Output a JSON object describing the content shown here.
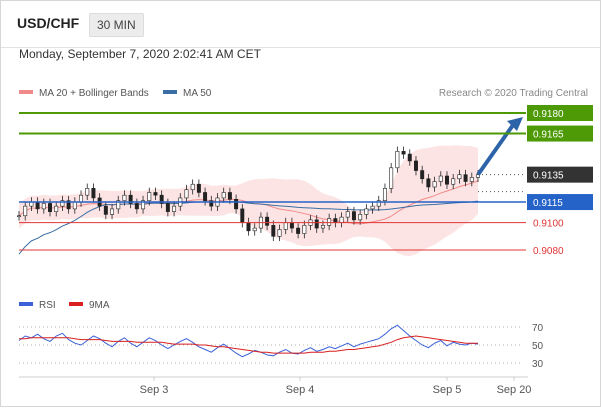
{
  "header": {
    "symbol": "USD/CHF",
    "timeframe": "30 MIN"
  },
  "datetime": "Monday, September 7, 2020 2:02:41 AM CET",
  "credit": "Research © 2020 Trading Central",
  "legend": {
    "bollinger": "MA 20 + Bollinger Bands",
    "ma50": "MA 50",
    "rsi": "RSI",
    "rsi_ma": "9MA"
  },
  "colors": {
    "green": "#4d9a06",
    "blue": "#2563c8",
    "red": "#e23434",
    "dark": "#333333",
    "bb_fill": "#fbd8d8",
    "ma20": "#f08a8a",
    "ma50": "#3a6fa5",
    "candle": "#222222",
    "arrow": "#2d63a8"
  },
  "chart_data": [
    {
      "type": "line",
      "title": "USD/CHF 30 MIN",
      "price_levels": [
        {
          "value": 0.918,
          "label": "0.9180",
          "kind": "resistance",
          "color": "#4d9a06"
        },
        {
          "value": 0.9165,
          "label": "0.9165",
          "kind": "resistance",
          "color": "#4d9a06"
        },
        {
          "value": 0.9135,
          "label": "0.9135",
          "kind": "last",
          "color": "#333333"
        },
        {
          "value": 0.9115,
          "label": "0.9115",
          "kind": "pivot",
          "color": "#2563c8"
        },
        {
          "value": 0.91,
          "label": "0.9100",
          "kind": "support",
          "color": "#e23434"
        },
        {
          "value": 0.908,
          "label": "0.9080",
          "kind": "support",
          "color": "#e23434"
        }
      ],
      "price_series": [
        0.9105,
        0.9112,
        0.9115,
        0.911,
        0.9114,
        0.9108,
        0.9112,
        0.9116,
        0.911,
        0.9115,
        0.912,
        0.9125,
        0.9118,
        0.9112,
        0.9106,
        0.911,
        0.9116,
        0.912,
        0.9114,
        0.911,
        0.9116,
        0.9122,
        0.912,
        0.9114,
        0.9108,
        0.9112,
        0.9118,
        0.9124,
        0.9128,
        0.9122,
        0.9116,
        0.9112,
        0.9118,
        0.9122,
        0.9117,
        0.911,
        0.91,
        0.9094,
        0.9096,
        0.9104,
        0.9098,
        0.909,
        0.9095,
        0.91,
        0.9096,
        0.9092,
        0.9098,
        0.9102,
        0.9096,
        0.9098,
        0.9103,
        0.91,
        0.9104,
        0.9108,
        0.9102,
        0.9106,
        0.911,
        0.9112,
        0.9116,
        0.9125,
        0.914,
        0.9152,
        0.915,
        0.9145,
        0.9138,
        0.9132,
        0.9126,
        0.913,
        0.9134,
        0.9128,
        0.9132,
        0.9135,
        0.913,
        0.9133,
        0.9135
      ],
      "projection_target": 0.918,
      "x_ticks": [
        "Sep 3",
        "Sep 4",
        "Sep 5",
        "Sep 20"
      ]
    },
    {
      "type": "line",
      "title": "RSI",
      "ylim": [
        20,
        80
      ],
      "y_ticks": [
        "70",
        "50",
        "30"
      ],
      "series": [
        {
          "name": "RSI",
          "color": "#3a62d6",
          "values": [
            55,
            60,
            58,
            62,
            57,
            54,
            60,
            63,
            56,
            52,
            50,
            55,
            60,
            57,
            52,
            48,
            54,
            58,
            52,
            48,
            53,
            58,
            55,
            50,
            46,
            50,
            54,
            57,
            53,
            48,
            45,
            42,
            47,
            51,
            46,
            41,
            37,
            40,
            44,
            42,
            39,
            38,
            42,
            45,
            41,
            40,
            44,
            47,
            43,
            45,
            48,
            46,
            49,
            52,
            48,
            51,
            53,
            55,
            57,
            62,
            68,
            72,
            66,
            60,
            55,
            50,
            47,
            52,
            55,
            49,
            53,
            51,
            50,
            52,
            51
          ]
        },
        {
          "name": "9MA",
          "color": "#d91f1f",
          "values": [
            57,
            57,
            58,
            58,
            58,
            58,
            58,
            58,
            58,
            57,
            56,
            56,
            56,
            56,
            55,
            54,
            54,
            54,
            54,
            53,
            53,
            53,
            53,
            53,
            52,
            51,
            51,
            51,
            51,
            50,
            50,
            49,
            48,
            48,
            47,
            46,
            45,
            44,
            43,
            42,
            42,
            41,
            41,
            41,
            41,
            41,
            41,
            42,
            42,
            42,
            43,
            43,
            44,
            45,
            45,
            46,
            47,
            48,
            49,
            51,
            53,
            56,
            58,
            59,
            60,
            59,
            58,
            57,
            56,
            55,
            54,
            53,
            52,
            52,
            52
          ]
        }
      ]
    }
  ]
}
